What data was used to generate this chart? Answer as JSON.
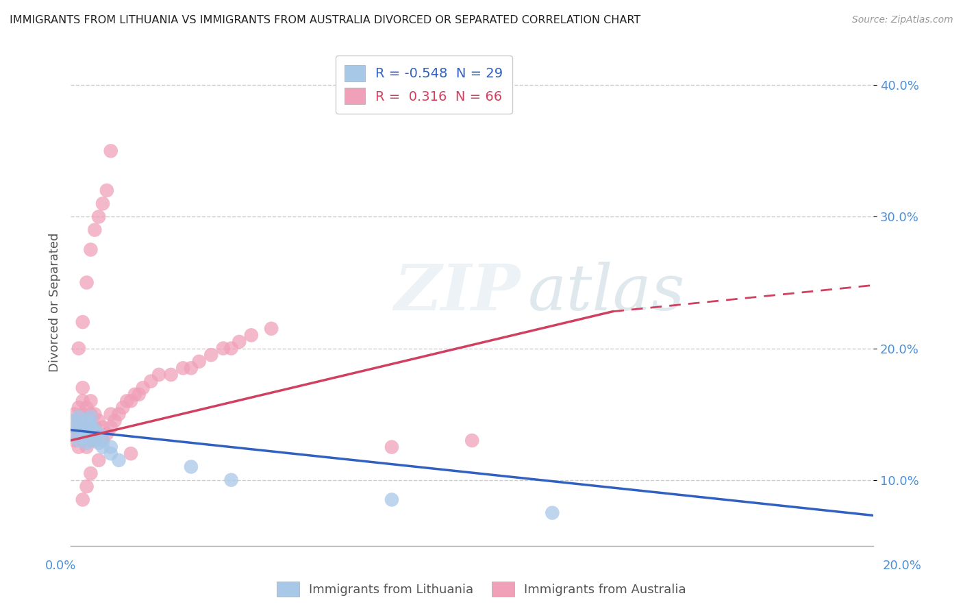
{
  "title": "IMMIGRANTS FROM LITHUANIA VS IMMIGRANTS FROM AUSTRALIA DIVORCED OR SEPARATED CORRELATION CHART",
  "source": "Source: ZipAtlas.com",
  "ylabel": "Divorced or Separated",
  "xlim": [
    0.0,
    0.2
  ],
  "ylim": [
    0.05,
    0.42
  ],
  "yticks": [
    0.1,
    0.2,
    0.3,
    0.4
  ],
  "ytick_labels": [
    "10.0%",
    "20.0%",
    "30.0%",
    "40.0%"
  ],
  "color_lithuania": "#a8c8e8",
  "color_australia": "#f0a0b8",
  "line_color_lithuania": "#3060c0",
  "line_color_australia": "#d04060",
  "background_color": "#ffffff",
  "lithuania_x": [
    0.001,
    0.001,
    0.002,
    0.002,
    0.002,
    0.003,
    0.003,
    0.003,
    0.004,
    0.004,
    0.004,
    0.004,
    0.005,
    0.005,
    0.005,
    0.005,
    0.006,
    0.006,
    0.007,
    0.007,
    0.008,
    0.008,
    0.01,
    0.01,
    0.012,
    0.03,
    0.04,
    0.08,
    0.12
  ],
  "lithuania_y": [
    0.135,
    0.145,
    0.13,
    0.14,
    0.148,
    0.132,
    0.138,
    0.143,
    0.128,
    0.135,
    0.14,
    0.145,
    0.13,
    0.138,
    0.143,
    0.148,
    0.132,
    0.138,
    0.128,
    0.135,
    0.13,
    0.125,
    0.125,
    0.12,
    0.115,
    0.11,
    0.1,
    0.085,
    0.075
  ],
  "australia_x": [
    0.001,
    0.001,
    0.001,
    0.002,
    0.002,
    0.002,
    0.002,
    0.003,
    0.003,
    0.003,
    0.003,
    0.003,
    0.004,
    0.004,
    0.004,
    0.004,
    0.005,
    0.005,
    0.005,
    0.005,
    0.006,
    0.006,
    0.006,
    0.007,
    0.007,
    0.008,
    0.008,
    0.009,
    0.01,
    0.01,
    0.011,
    0.012,
    0.013,
    0.014,
    0.015,
    0.016,
    0.017,
    0.018,
    0.02,
    0.022,
    0.025,
    0.028,
    0.03,
    0.032,
    0.035,
    0.038,
    0.04,
    0.042,
    0.045,
    0.05,
    0.002,
    0.003,
    0.004,
    0.005,
    0.006,
    0.007,
    0.008,
    0.009,
    0.01,
    0.015,
    0.003,
    0.004,
    0.005,
    0.007,
    0.08,
    0.1
  ],
  "australia_y": [
    0.13,
    0.14,
    0.15,
    0.125,
    0.135,
    0.145,
    0.155,
    0.13,
    0.14,
    0.15,
    0.16,
    0.17,
    0.125,
    0.135,
    0.145,
    0.155,
    0.13,
    0.14,
    0.15,
    0.16,
    0.13,
    0.14,
    0.15,
    0.135,
    0.145,
    0.13,
    0.14,
    0.135,
    0.14,
    0.15,
    0.145,
    0.15,
    0.155,
    0.16,
    0.16,
    0.165,
    0.165,
    0.17,
    0.175,
    0.18,
    0.18,
    0.185,
    0.185,
    0.19,
    0.195,
    0.2,
    0.2,
    0.205,
    0.21,
    0.215,
    0.2,
    0.22,
    0.25,
    0.275,
    0.29,
    0.3,
    0.31,
    0.32,
    0.35,
    0.12,
    0.085,
    0.095,
    0.105,
    0.115,
    0.125,
    0.13
  ],
  "line_lith_x0": 0.0,
  "line_lith_y0": 0.138,
  "line_lith_x1": 0.2,
  "line_lith_y1": 0.073,
  "line_aus_x0": 0.0,
  "line_aus_y0": 0.13,
  "line_aus_x1": 0.2,
  "line_aus_y1": 0.248,
  "line_aus_dash_x0": 0.135,
  "line_aus_dash_y0": 0.228,
  "line_aus_dash_x1": 0.2,
  "line_aus_dash_y1": 0.248
}
